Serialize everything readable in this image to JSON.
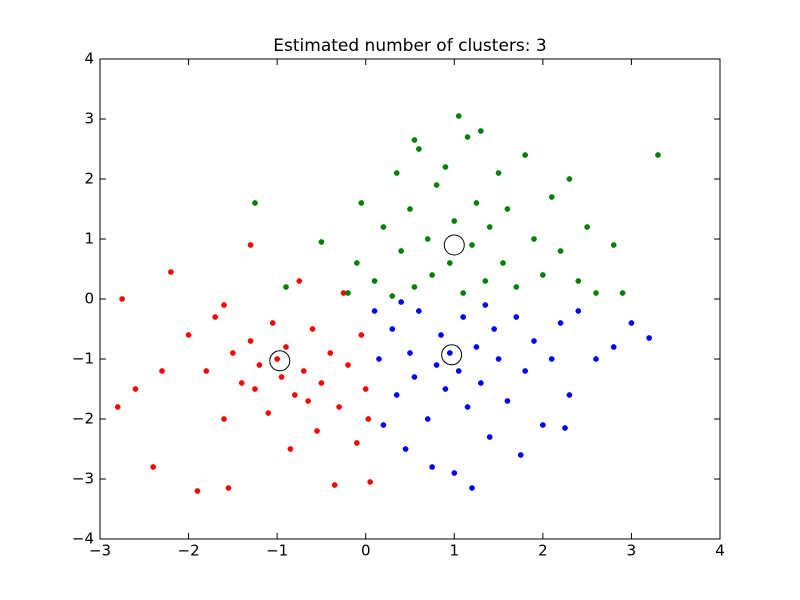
{
  "chart_data": {
    "type": "scatter",
    "title": "Estimated number of clusters: 3",
    "xlim": [
      -3,
      4
    ],
    "xticks": [
      {
        "value": -3,
        "label": "−3"
      },
      {
        "value": -2,
        "label": "−2"
      },
      {
        "value": -1,
        "label": "−1"
      },
      0,
      1,
      2,
      3,
      4
    ],
    "ylim": [
      -4,
      4
    ],
    "yticks": [
      {
        "value": -4,
        "label": "−4"
      },
      {
        "value": -3,
        "label": "−3"
      },
      {
        "value": -2,
        "label": "−2"
      },
      {
        "value": -1,
        "label": "−1"
      },
      0,
      1,
      2,
      3,
      4
    ],
    "grid": false,
    "series": [
      {
        "color": "#ff0000",
        "x": [
          -2.8,
          -2.75,
          -2.6,
          -2.4,
          -2.2,
          -2.0,
          -1.9,
          -1.8,
          -1.7,
          -1.6,
          -1.55,
          -1.5,
          -1.4,
          -1.3,
          -1.3,
          -1.2,
          -1.1,
          -1.05,
          -1.0,
          -0.95,
          -0.9,
          -0.85,
          -0.8,
          -0.75,
          -0.7,
          -0.6,
          -0.55,
          -0.5,
          -0.4,
          -0.35,
          -0.3,
          -0.25,
          -0.2,
          -0.1,
          -0.05,
          0.0,
          0.05,
          0.03,
          -1.6,
          -2.3,
          -1.25,
          -0.65
        ],
        "values": [
          -1.8,
          0.0,
          -1.5,
          -2.8,
          0.45,
          -0.6,
          -3.2,
          -1.2,
          -0.3,
          -2.0,
          -3.15,
          -0.9,
          -1.4,
          0.9,
          -0.7,
          -1.1,
          -1.9,
          -0.4,
          -1.0,
          -1.3,
          -0.8,
          -2.5,
          -1.6,
          0.3,
          -1.2,
          -0.5,
          -2.2,
          -1.4,
          -0.9,
          -3.1,
          -1.8,
          0.1,
          -1.1,
          -2.4,
          -0.6,
          -1.5,
          -3.05,
          -2.0,
          -0.1,
          -1.2,
          -1.5,
          -1.7
        ]
      },
      {
        "color": "#0000ff",
        "x": [
          0.1,
          0.15,
          0.2,
          0.3,
          0.35,
          0.45,
          0.5,
          0.55,
          0.6,
          0.7,
          0.75,
          0.8,
          0.85,
          0.9,
          0.95,
          1.0,
          1.05,
          1.1,
          1.15,
          1.2,
          1.25,
          1.3,
          1.4,
          1.45,
          1.5,
          1.6,
          1.7,
          1.75,
          1.8,
          1.9,
          2.0,
          2.1,
          2.2,
          2.3,
          2.4,
          2.6,
          2.8,
          3.0,
          3.2,
          2.25,
          0.4,
          1.35
        ],
        "values": [
          -0.2,
          -1.0,
          -2.1,
          -0.5,
          -1.6,
          -2.5,
          -0.9,
          -1.3,
          -0.2,
          -2.0,
          -2.8,
          -1.1,
          -0.6,
          -1.5,
          -0.9,
          -2.9,
          -1.2,
          -0.3,
          -1.8,
          -3.15,
          -0.8,
          -1.4,
          -2.3,
          -0.5,
          -1.0,
          -1.7,
          -0.3,
          -2.6,
          -1.2,
          -0.7,
          -2.1,
          -1.0,
          -0.4,
          -1.6,
          -0.2,
          -1.0,
          -0.8,
          -0.4,
          -0.65,
          -2.15,
          -0.05,
          -0.1
        ]
      },
      {
        "color": "#008000",
        "x": [
          -0.2,
          -0.1,
          -0.05,
          0.1,
          0.2,
          0.3,
          0.35,
          0.4,
          0.5,
          0.55,
          0.6,
          0.7,
          0.75,
          0.8,
          0.9,
          0.95,
          1.0,
          1.05,
          1.1,
          1.15,
          1.2,
          1.25,
          1.3,
          1.35,
          1.4,
          1.5,
          1.55,
          1.6,
          1.7,
          1.8,
          1.9,
          2.0,
          2.1,
          2.2,
          2.3,
          2.4,
          2.5,
          2.6,
          2.8,
          2.9,
          3.3,
          -1.25,
          -0.9,
          -0.5,
          0.55
        ],
        "values": [
          0.1,
          0.6,
          1.6,
          0.3,
          1.2,
          0.05,
          2.1,
          0.8,
          1.5,
          0.2,
          2.5,
          1.0,
          0.4,
          1.9,
          2.2,
          0.6,
          1.3,
          3.05,
          0.1,
          2.7,
          0.9,
          1.6,
          2.8,
          0.3,
          1.2,
          2.1,
          0.6,
          1.5,
          0.2,
          2.4,
          1.0,
          0.4,
          1.7,
          0.8,
          2.0,
          0.3,
          1.2,
          0.1,
          0.9,
          0.1,
          2.4,
          1.6,
          0.2,
          0.95,
          2.65
        ]
      },
      {
        "color": "#000000",
        "hollow": true,
        "x": [
          -0.97,
          0.97,
          1.0
        ],
        "values": [
          -1.03,
          -0.93,
          0.9
        ]
      }
    ]
  }
}
